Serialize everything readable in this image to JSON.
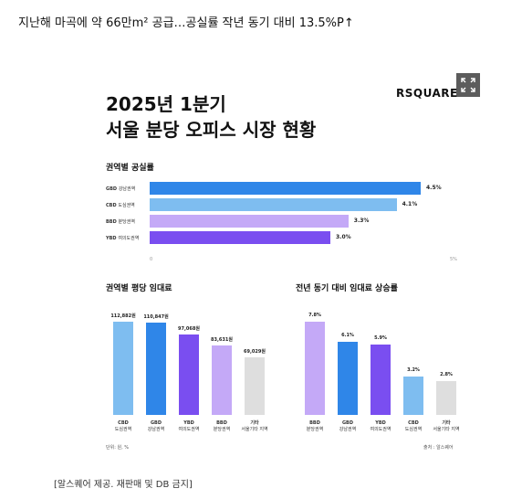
{
  "headline": "지난해 마곡에 약 66만m² 공급…공실률 작년 동기 대비 13.5%P↑",
  "card": {
    "title_line1": "2025년 1분기",
    "title_line2": "서울 분당 오피스 시장 현황",
    "logo": "RSQUARE",
    "expand_icon": "expand-icon",
    "footnote_left": "단위: 원, %",
    "footnote_right": "출처 : 알스퀘어"
  },
  "caption": "[알스퀘어 제공. 재판매 및 DB 금지]",
  "chart_data": [
    {
      "type": "bar",
      "orientation": "horizontal",
      "title": "권역별 공실률",
      "categories": [
        "GBD 강남권역",
        "CBD 도심권역",
        "BBD 분당권역",
        "YBD 여의도권역"
      ],
      "category_codes": [
        "GBD",
        "CBD",
        "BBD",
        "YBD"
      ],
      "category_names": [
        "강남권역",
        "도심권역",
        "분당권역",
        "여의도권역"
      ],
      "values": [
        4.5,
        4.1,
        3.3,
        3.0
      ],
      "value_labels": [
        "4.5%",
        "4.1%",
        "3.3%",
        "3.0%"
      ],
      "colors": [
        "#2f86e8",
        "#7ebdf0",
        "#c4a9f7",
        "#7a4ef0"
      ],
      "xlim": [
        0,
        5
      ],
      "xtick_labels": [
        "0",
        "5%"
      ]
    },
    {
      "type": "bar",
      "title": "권역별 평당 임대료",
      "categories": [
        "CBD 도심권역",
        "GBD 강남권역",
        "YBD 여의도권역",
        "BBD 분당권역",
        "기타 서울기타 지역"
      ],
      "category_codes": [
        "CBD",
        "GBD",
        "YBD",
        "BBD",
        "기타"
      ],
      "category_names": [
        "도심권역",
        "강남권역",
        "여의도권역",
        "분당권역",
        "서울기타 지역"
      ],
      "values": [
        112882,
        110847,
        97068,
        83631,
        69029
      ],
      "value_labels": [
        "112,882원",
        "110,847원",
        "97,068원",
        "83,631원",
        "69,029원"
      ],
      "colors": [
        "#7ebdf0",
        "#2f86e8",
        "#7a4ef0",
        "#c4a9f7",
        "#dedede"
      ],
      "ylim": [
        0,
        130000
      ]
    },
    {
      "type": "bar",
      "title": "전년 동기 대비 임대료 상승률",
      "categories": [
        "BBD 분당권역",
        "GBD 강남권역",
        "YBD 여의도권역",
        "CBD 도심권역",
        "기타 서울기타 지역"
      ],
      "category_codes": [
        "BBD",
        "GBD",
        "YBD",
        "CBD",
        "기타"
      ],
      "category_names": [
        "분당권역",
        "강남권역",
        "여의도권역",
        "도심권역",
        "서울기타 지역"
      ],
      "values": [
        7.8,
        6.1,
        5.9,
        3.2,
        2.8
      ],
      "value_labels": [
        "7.8%",
        "6.1%",
        "5.9%",
        "3.2%",
        "2.8%"
      ],
      "colors": [
        "#c4a9f7",
        "#2f86e8",
        "#7a4ef0",
        "#7ebdf0",
        "#dedede"
      ],
      "ylim": [
        0,
        9
      ]
    }
  ]
}
